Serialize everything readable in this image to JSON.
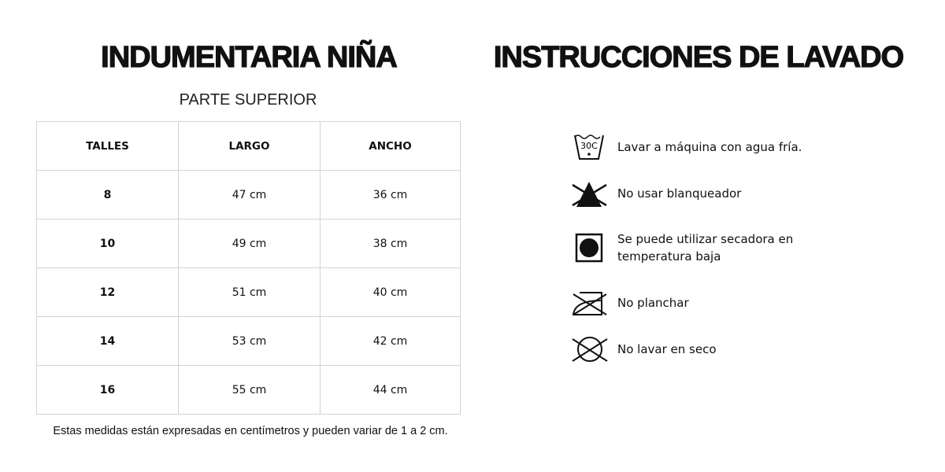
{
  "left": {
    "title": "INDUMENTARIA NIÑA",
    "subtitle": "PARTE SUPERIOR",
    "columns": [
      "TALLES",
      "LARGO",
      "ANCHO"
    ],
    "rows": [
      [
        "8",
        "47 cm",
        "36 cm"
      ],
      [
        "10",
        "49 cm",
        "38 cm"
      ],
      [
        "12",
        "51 cm",
        "40 cm"
      ],
      [
        "14",
        "53 cm",
        "42 cm"
      ],
      [
        "16",
        "55 cm",
        "44 cm"
      ]
    ],
    "note": "Estas medidas están expresadas en centímetros y pueden variar de 1 a 2 cm."
  },
  "right": {
    "title": "INSTRUCCIONES DE LAVADO",
    "items": [
      {
        "icon": "wash-30c-icon",
        "label": "Lavar a máquina con agua fría.",
        "icon_text": "30C"
      },
      {
        "icon": "no-bleach-icon",
        "label": "No usar blanqueador"
      },
      {
        "icon": "tumble-dry-low-icon",
        "label": "Se puede utilizar secadora en temperatura baja"
      },
      {
        "icon": "no-iron-icon",
        "label": "No planchar"
      },
      {
        "icon": "no-dry-clean-icon",
        "label": "No lavar en seco"
      }
    ]
  }
}
